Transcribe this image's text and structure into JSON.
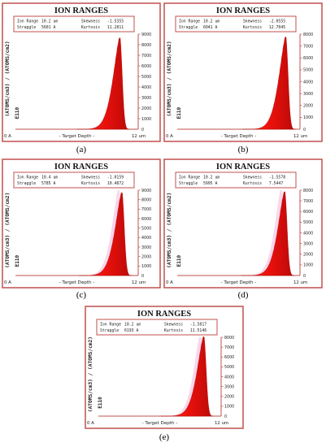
{
  "chart_data": [
    {
      "type": "area",
      "caption": "(a)",
      "title": "ION RANGES",
      "stats": {
        "ion_range_label": "Ion Range",
        "ion_range": "10.2 um",
        "straggle_label": "Straggle",
        "straggle": "5601 A",
        "skewness_label": "Skewness",
        "skewness": "-1.5355",
        "kurtosis_label": "Kurtosis",
        "kurtosis": "11.2811"
      },
      "xlabel": "- Target Depth -",
      "x_tick_labels": [
        "0 A",
        "12 um"
      ],
      "ylabel": "(ATOMS/cm3) / (ATOMS/cm2)",
      "y_unit_mark": "E110",
      "yticks": [
        1000,
        2000,
        3000,
        4000,
        5000,
        6000,
        7000,
        8000,
        9000
      ],
      "ylim": [
        0,
        9000
      ],
      "xlim_um": [
        0,
        12
      ],
      "peak": {
        "depth_um": 10.2,
        "value": 8800
      },
      "color": "#e8100c",
      "halo": false
    },
    {
      "type": "area",
      "caption": "(b)",
      "title": "ION RANGES",
      "stats": {
        "ion_range_label": "Ion Range",
        "ion_range": "10.2 um",
        "straggle_label": "Straggle",
        "straggle": "6041 A",
        "skewness_label": "Skewness",
        "skewness": "-2.0555",
        "kurtosis_label": "Kurtosis",
        "kurtosis": "12.7045"
      },
      "xlabel": "- Target Depth -",
      "x_tick_labels": [
        "0 A",
        "12 um"
      ],
      "ylabel": "(ATOMS/cm3) / (ATOMS/cm2)",
      "y_unit_mark": "E110",
      "yticks": [
        1000,
        2000,
        3000,
        4000,
        5000,
        6000,
        7000,
        8000
      ],
      "ylim": [
        0,
        8000
      ],
      "xlim_um": [
        0,
        12
      ],
      "peak": {
        "depth_um": 10.6,
        "value": 7900
      },
      "color": "#e8100c",
      "halo": false
    },
    {
      "type": "area",
      "caption": "(c)",
      "title": "ION RANGES",
      "stats": {
        "ion_range_label": "Ion Range",
        "ion_range": "10.4 um",
        "straggle_label": "Straggle",
        "straggle": "5785 A",
        "skewness_label": "Skewness",
        "skewness": "-1.0159",
        "kurtosis_label": "Kurtosis",
        "kurtosis": "10.4872"
      },
      "xlabel": "- Target Depth -",
      "x_tick_labels": [
        "0 A",
        "12 um"
      ],
      "ylabel": "(ATOMS/cm3) / (ATOMS/cm2)",
      "y_unit_mark": "E110",
      "yticks": [
        1000,
        2000,
        3000,
        4000,
        5000,
        6000,
        7000,
        8000,
        9000
      ],
      "ylim": [
        0,
        9000
      ],
      "xlim_um": [
        0,
        12
      ],
      "peak": {
        "depth_um": 10.4,
        "value": 8900
      },
      "color": "#e8100c",
      "halo": true
    },
    {
      "type": "area",
      "caption": "(d)",
      "title": "ION RANGES",
      "stats": {
        "ion_range_label": "Ion Range",
        "ion_range": "10.2 um",
        "straggle_label": "Straggle",
        "straggle": "5995 A",
        "skewness_label": "Skewness",
        "skewness": "-1.5578",
        "kurtosis_label": "Kurtosis",
        "kurtosis": "7.5447"
      },
      "xlabel": "- Target Depth -",
      "x_tick_labels": [
        "0 A",
        "12 um"
      ],
      "ylabel": "(ATOMS/cm3) / (ATOMS/cm2)",
      "y_unit_mark": "E110",
      "yticks": [
        1000,
        2000,
        3000,
        4000,
        5000,
        6000,
        7000,
        8000
      ],
      "ylim": [
        0,
        8000
      ],
      "xlim_um": [
        0,
        12
      ],
      "peak": {
        "depth_um": 10.5,
        "value": 8000
      },
      "color": "#e8100c",
      "halo": true
    },
    {
      "type": "area",
      "caption": "(e)",
      "title": "ION RANGES",
      "stats": {
        "ion_range_label": "Ion Range",
        "ion_range": "10.2 um",
        "straggle_label": "Straggle",
        "straggle": "6193 A",
        "skewness_label": "Skewness",
        "skewness": "-1.5817",
        "kurtosis_label": "Kurtosis",
        "kurtosis": "11.5146"
      },
      "xlabel": "- Target Depth -",
      "x_tick_labels": [
        "0 A",
        "12 um"
      ],
      "ylabel": "(ATOMS/cm3) / (ATOMS/cm2)",
      "y_unit_mark": "E110",
      "yticks": [
        1000,
        2000,
        3000,
        4000,
        5000,
        6000,
        7000,
        8000
      ],
      "ylim": [
        0,
        8000
      ],
      "xlim_um": [
        0,
        12
      ],
      "peak": {
        "depth_um": 10.3,
        "value": 8200
      },
      "color": "#e8100c",
      "halo": true
    }
  ]
}
